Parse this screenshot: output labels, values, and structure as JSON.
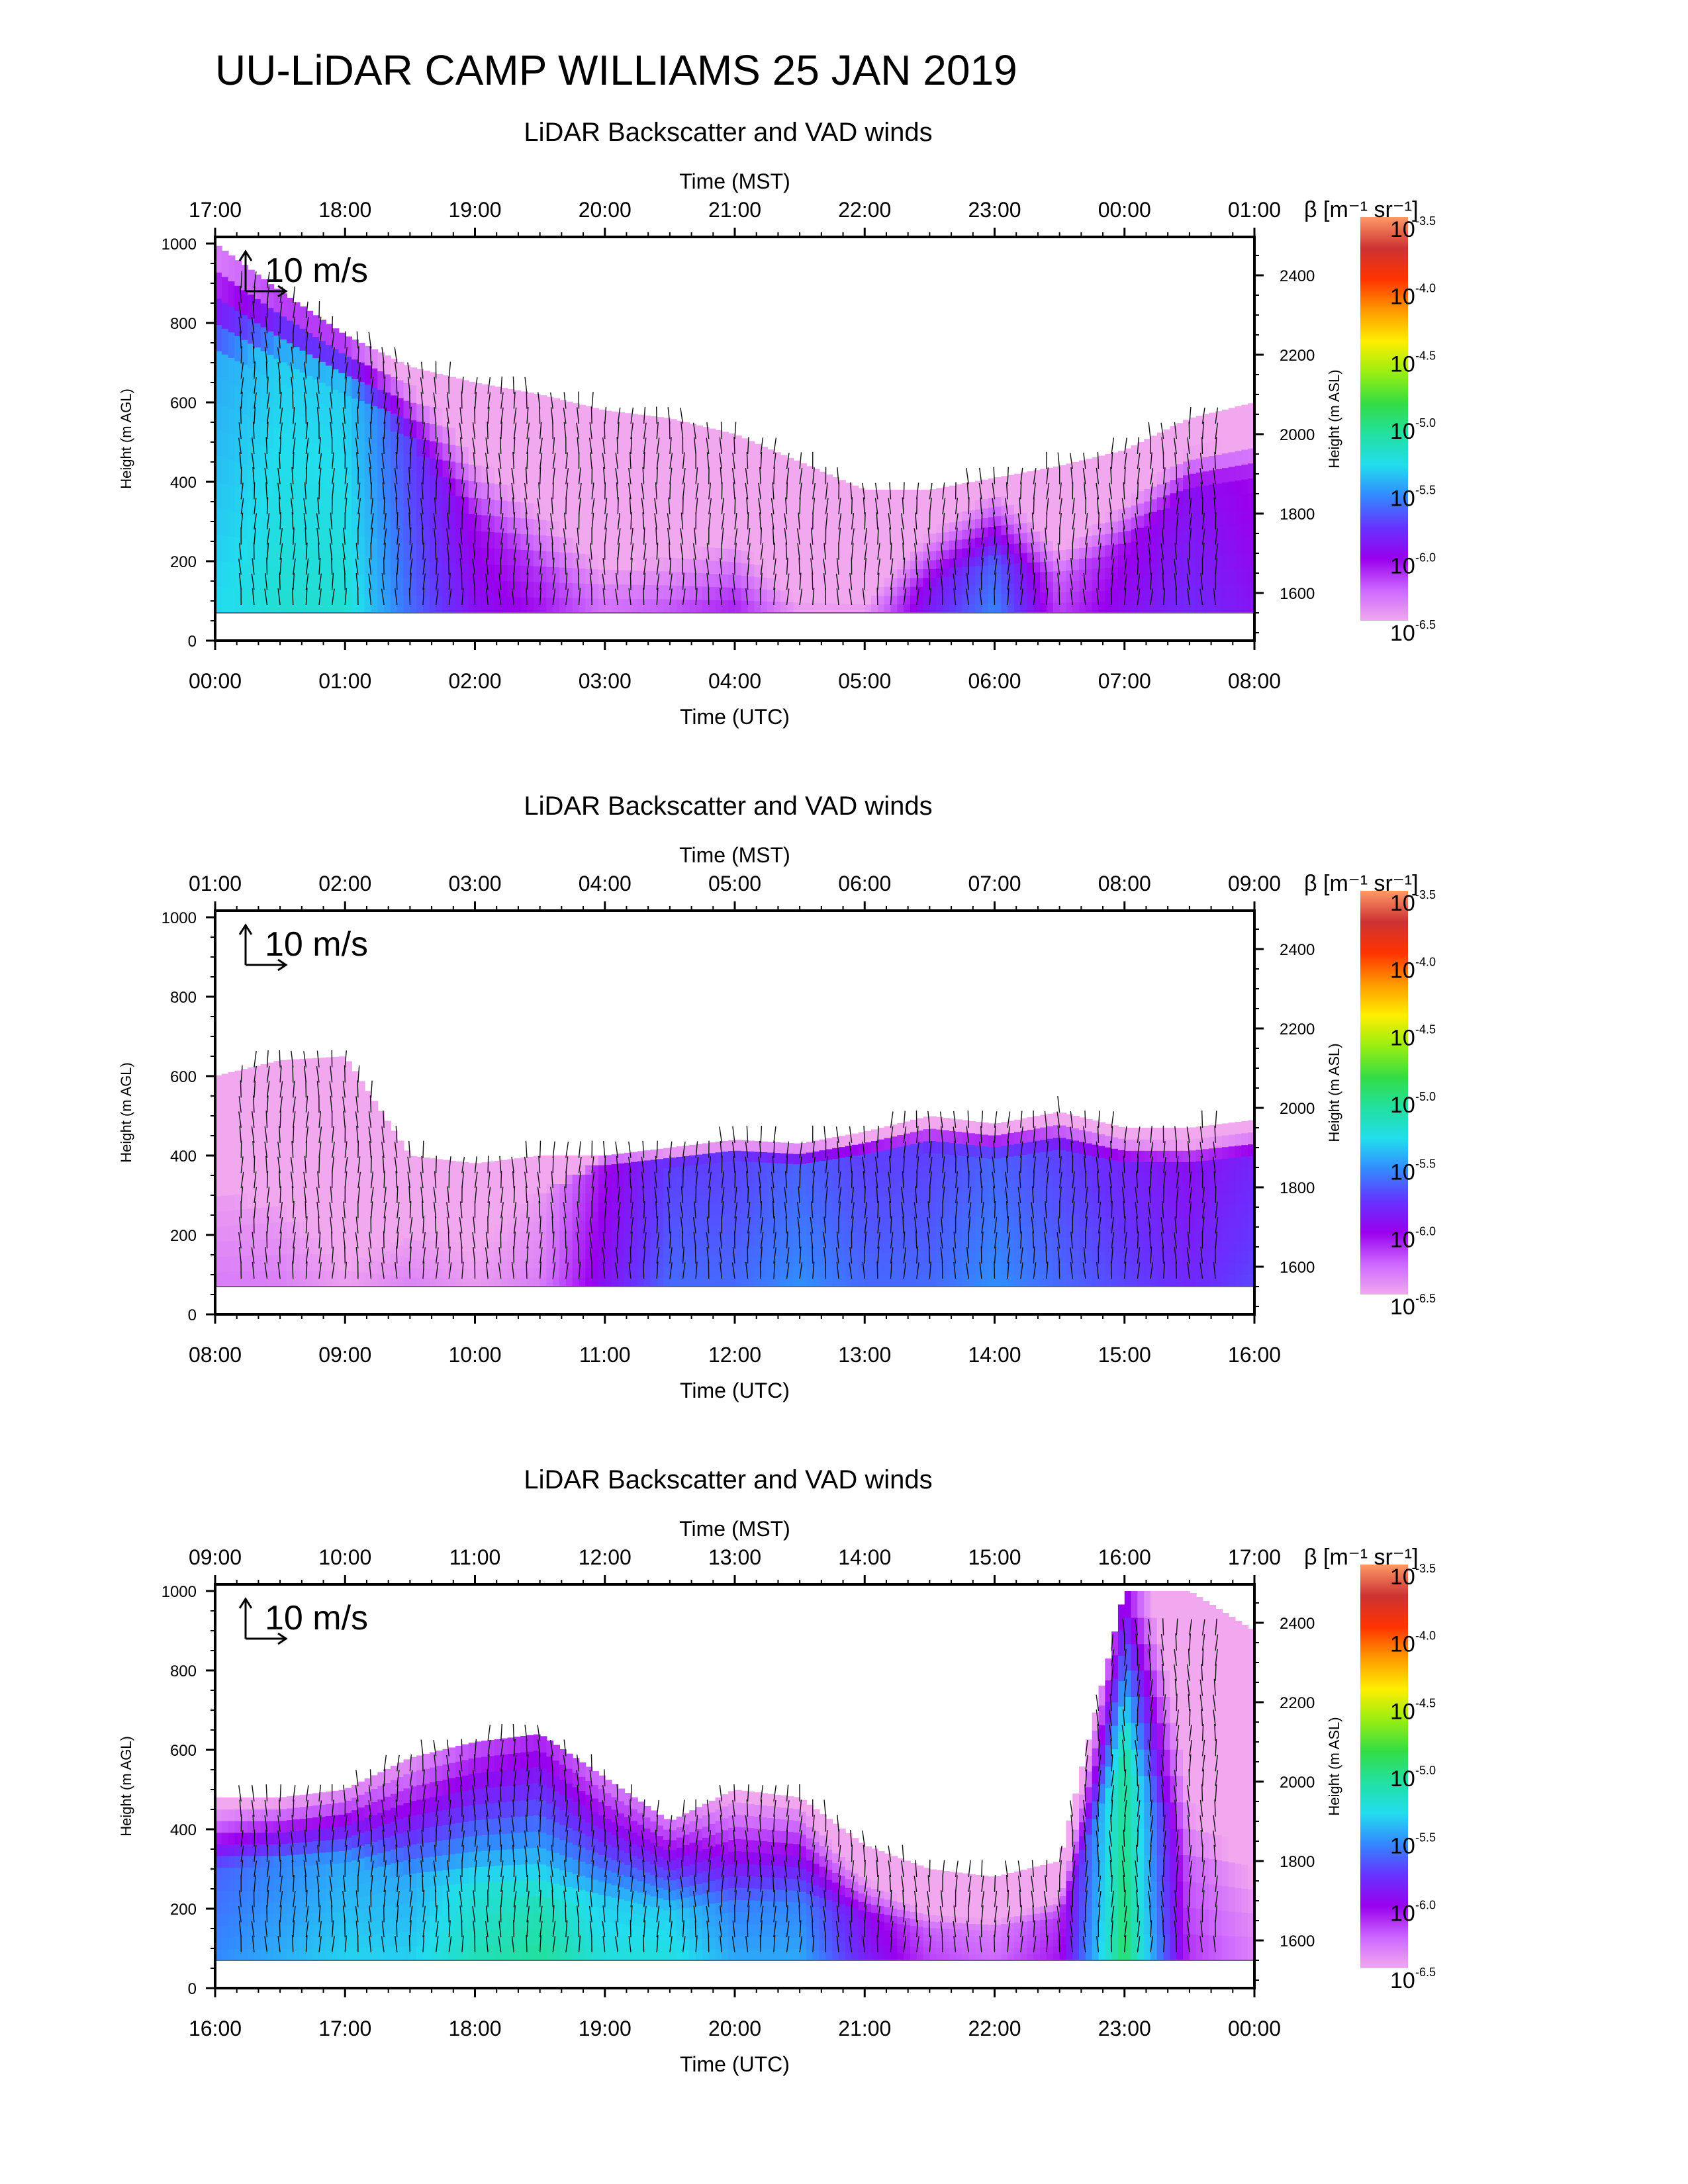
{
  "figure_title": "UU-LiDAR CAMP WILLIAMS 25 JAN 2019",
  "colors": {
    "ramp": [
      "#f2a8ee",
      "#cc66ff",
      "#9900ee",
      "#6633ff",
      "#3388ff",
      "#22ddee",
      "#22e0a0",
      "#33dd44",
      "#99ee11",
      "#ffee00",
      "#ff9900",
      "#ff3300",
      "#cc3333",
      "#ff9966"
    ],
    "background": "#ffffff",
    "axis": "#000000"
  },
  "chart_data": [
    {
      "type": "heatmap",
      "title": "LiDAR Backscatter and VAD winds",
      "top_axis_label": "Time (MST)",
      "top_ticks": [
        "17:00",
        "18:00",
        "19:00",
        "20:00",
        "21:00",
        "22:00",
        "23:00",
        "00:00",
        "01:00"
      ],
      "xlabel": "Time (UTC)",
      "x_ticks": [
        "00:00",
        "01:00",
        "02:00",
        "03:00",
        "04:00",
        "05:00",
        "06:00",
        "07:00",
        "08:00"
      ],
      "ylabel": "Height (m AGL)",
      "y_ticks": [
        0,
        200,
        400,
        600,
        800,
        1000
      ],
      "ylim": [
        0,
        1000
      ],
      "y2label": "Height (m ASL)",
      "y2_ticks": [
        1600,
        1800,
        2000,
        2200,
        2400
      ],
      "wind_scale_label": "10 m/s",
      "colorbar_label": "β [m⁻¹ sr⁻¹]",
      "colorbar_ticks": [
        "-3.5",
        "-4.0",
        "-4.5",
        "-5.0",
        "-5.5",
        "-6.0",
        "-6.5"
      ],
      "colorbar_base": "10",
      "series": [
        {
          "hours": [
            0,
            0.5,
            1,
            1.5,
            2,
            2.5,
            3,
            3.5,
            4,
            4.5,
            5,
            5.5,
            6,
            6.5,
            7,
            7.5,
            8
          ],
          "cloud_top_m": [
            1000,
            880,
            770,
            690,
            650,
            620,
            580,
            560,
            520,
            450,
            380,
            380,
            410,
            440,
            480,
            560,
            600
          ],
          "core_height_m": [
            700,
            720,
            640,
            500,
            300,
            180,
            120,
            100,
            120,
            80,
            80,
            140,
            200,
            160,
            240,
            380,
            420
          ],
          "core_level_log": [
            -5.4,
            -5.3,
            -5.3,
            -5.7,
            -6.0,
            -6.1,
            -6.3,
            -6.2,
            -6.1,
            -6.4,
            -6.4,
            -5.9,
            -5.6,
            -6.2,
            -6.0,
            -5.9,
            -6.0
          ]
        }
      ]
    },
    {
      "type": "heatmap",
      "title": "LiDAR Backscatter and VAD winds",
      "top_axis_label": "Time (MST)",
      "top_ticks": [
        "01:00",
        "02:00",
        "03:00",
        "04:00",
        "05:00",
        "06:00",
        "07:00",
        "08:00",
        "09:00"
      ],
      "xlabel": "Time (UTC)",
      "x_ticks": [
        "08:00",
        "09:00",
        "10:00",
        "11:00",
        "12:00",
        "13:00",
        "14:00",
        "15:00",
        "16:00"
      ],
      "ylabel": "Height (m AGL)",
      "y_ticks": [
        0,
        200,
        400,
        600,
        800,
        1000
      ],
      "ylim": [
        0,
        1000
      ],
      "y2label": "Height (m ASL)",
      "y2_ticks": [
        1600,
        1800,
        2000,
        2200,
        2400
      ],
      "wind_scale_label": "10 m/s",
      "colorbar_label": "β [m⁻¹ sr⁻¹]",
      "colorbar_ticks": [
        "-3.5",
        "-4.0",
        "-4.5",
        "-5.0",
        "-5.5",
        "-6.0",
        "-6.5"
      ],
      "colorbar_base": "10",
      "series": [
        {
          "hours": [
            8,
            8.5,
            9,
            9.5,
            10,
            10.5,
            11,
            11.5,
            12,
            12.5,
            13,
            13.5,
            14,
            14.5,
            15,
            15.5,
            16
          ],
          "cloud_top_m": [
            600,
            640,
            650,
            400,
            380,
            400,
            400,
            420,
            440,
            430,
            460,
            500,
            480,
            510,
            470,
            470,
            490
          ],
          "core_height_m": [
            300,
            250,
            200,
            180,
            250,
            300,
            380,
            380,
            400,
            380,
            400,
            420,
            400,
            420,
            380,
            380,
            400
          ],
          "core_level_log": [
            -6.4,
            -6.4,
            -6.5,
            -6.4,
            -6.5,
            -6.4,
            -6.0,
            -5.7,
            -5.7,
            -5.6,
            -5.7,
            -5.7,
            -5.6,
            -5.7,
            -5.8,
            -5.9,
            -5.8
          ]
        }
      ]
    },
    {
      "type": "heatmap",
      "title": "LiDAR Backscatter and VAD winds",
      "top_axis_label": "Time (MST)",
      "top_ticks": [
        "09:00",
        "10:00",
        "11:00",
        "12:00",
        "13:00",
        "14:00",
        "15:00",
        "16:00",
        "17:00"
      ],
      "xlabel": "Time (UTC)",
      "x_ticks": [
        "16:00",
        "17:00",
        "18:00",
        "19:00",
        "20:00",
        "21:00",
        "22:00",
        "23:00",
        "00:00"
      ],
      "ylabel": "Height (m AGL)",
      "y_ticks": [
        0,
        200,
        400,
        600,
        800,
        1000
      ],
      "ylim": [
        0,
        1000
      ],
      "y2label": "Height (m ASL)",
      "y2_ticks": [
        1600,
        1800,
        2000,
        2200,
        2400
      ],
      "wind_scale_label": "10 m/s",
      "colorbar_label": "β [m⁻¹ sr⁻¹]",
      "colorbar_ticks": [
        "-3.5",
        "-4.0",
        "-4.5",
        "-5.0",
        "-5.5",
        "-6.0",
        "-6.5"
      ],
      "colorbar_base": "10",
      "series": [
        {
          "hours": [
            16,
            16.5,
            17,
            17.5,
            18,
            18.5,
            19,
            19.5,
            20,
            20.5,
            21,
            21.5,
            22,
            22.5,
            23,
            23.5,
            24
          ],
          "cloud_top_m": [
            480,
            480,
            500,
            580,
            620,
            640,
            530,
            420,
            500,
            480,
            360,
            300,
            280,
            320,
            1000,
            1000,
            900
          ],
          "core_height_m": [
            300,
            320,
            320,
            280,
            260,
            220,
            220,
            200,
            200,
            220,
            180,
            150,
            150,
            180,
            600,
            300,
            250
          ],
          "core_level_log": [
            -5.6,
            -5.5,
            -5.4,
            -5.4,
            -5.2,
            -5.1,
            -5.3,
            -5.3,
            -5.5,
            -5.5,
            -5.9,
            -6.2,
            -6.3,
            -6.1,
            -5.0,
            -6.2,
            -6.4
          ]
        }
      ]
    }
  ]
}
